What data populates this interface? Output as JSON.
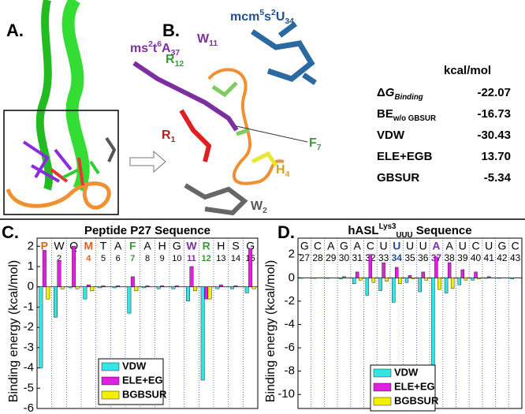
{
  "panel_labels": {
    "a": "A.",
    "b": "B."
  },
  "structure_labels": [
    {
      "color": "#7b2fa0",
      "parts": [
        {
          "t": "ms"
        },
        {
          "t": "2",
          "s": "sup"
        },
        {
          "t": "t"
        },
        {
          "t": "6",
          "s": "sup"
        },
        {
          "t": "A"
        },
        {
          "t": "37",
          "s": "sub"
        }
      ]
    },
    {
      "color": "#1f4f8f",
      "parts": [
        {
          "t": "mcm"
        },
        {
          "t": "5",
          "s": "sup"
        },
        {
          "t": "s"
        },
        {
          "t": "2",
          "s": "sup"
        },
        {
          "t": "U"
        },
        {
          "t": "34",
          "s": "sub"
        }
      ]
    },
    {
      "color": "#3a9a3a",
      "parts": [
        {
          "t": "R"
        },
        {
          "t": "12",
          "s": "sub"
        }
      ]
    },
    {
      "color": "#7b2fa0",
      "parts": [
        {
          "t": "W"
        },
        {
          "t": "11",
          "s": "sub"
        }
      ]
    },
    {
      "color": "#b22222",
      "parts": [
        {
          "t": "R"
        },
        {
          "t": "1",
          "s": "sub"
        }
      ]
    },
    {
      "color": "#3a9a3a",
      "parts": [
        {
          "t": "F"
        },
        {
          "t": "7",
          "s": "sub"
        }
      ]
    },
    {
      "color": "#d4a017",
      "parts": [
        {
          "t": "H"
        },
        {
          "t": "4",
          "s": "sub"
        }
      ]
    },
    {
      "color": "#555555",
      "parts": [
        {
          "t": "W"
        },
        {
          "t": "2",
          "s": "sub"
        }
      ]
    }
  ],
  "energy_table": {
    "unit": "kcal/mol",
    "rows": [
      {
        "label": [
          {
            "t": "Δ"
          },
          {
            "t": "G",
            "i": true
          },
          {
            "t": "Binding",
            "s": "sub",
            "i": true
          }
        ],
        "value": "-22.07"
      },
      {
        "label": [
          {
            "t": "BE"
          },
          {
            "t": "w/o GBSUR",
            "s": "sub"
          }
        ],
        "value": "-16.73"
      },
      {
        "label": [
          {
            "t": "VDW"
          }
        ],
        "value": "-30.43"
      },
      {
        "label": [
          {
            "t": "ELE+EGB"
          }
        ],
        "value": "13.70"
      },
      {
        "label": [
          {
            "t": "GBSUR"
          }
        ],
        "value": "-5.34"
      }
    ]
  },
  "chart_data": [
    {
      "type": "bar",
      "panel_label": "C.",
      "title": [
        {
          "t": "Peptide P27 Sequence"
        }
      ],
      "y_label": "Binding energy (kcal/mol)",
      "categories": [
        "P",
        "W",
        "Q",
        "M",
        "T",
        "A",
        "F",
        "A",
        "H",
        "G",
        "W",
        "R",
        "H",
        "S",
        "G"
      ],
      "category_numbers": [
        1,
        2,
        3,
        4,
        5,
        6,
        7,
        8,
        9,
        10,
        11,
        12,
        13,
        14,
        15
      ],
      "category_colors": [
        "#e06020",
        "#000000",
        "#000000",
        "#e06020",
        "#000000",
        "#000000",
        "#3a9a3a",
        "#000000",
        "#000000",
        "#000000",
        "#7b2fa0",
        "#3a9a3a",
        "#000000",
        "#000000",
        "#000000"
      ],
      "ylim": [
        -6,
        2.4
      ],
      "yticks": [
        -6,
        -5,
        -4,
        -3,
        -2,
        -1,
        0,
        1,
        2
      ],
      "legend": "lower center",
      "series": [
        {
          "name": "VDW",
          "color": "#33e6e6",
          "values": [
            -4.0,
            -1.5,
            -0.05,
            -0.6,
            -0.05,
            -0.05,
            -1.3,
            -0.05,
            -0.1,
            -0.1,
            -0.7,
            -4.6,
            -0.1,
            -0.1,
            -0.3
          ]
        },
        {
          "name": "ELE+EG",
          "color": "#e020e0",
          "values": [
            1.8,
            1.3,
            2.0,
            0.1,
            0.05,
            0.05,
            0.5,
            0.05,
            0.05,
            0.05,
            1.0,
            -0.6,
            0.1,
            0.05,
            1.9
          ]
        },
        {
          "name": "BGBSUR",
          "color": "#f0f000",
          "values": [
            -0.6,
            -0.1,
            -0.1,
            -0.2,
            0,
            0,
            -0.2,
            0,
            0,
            0,
            -0.2,
            -0.6,
            0,
            0,
            -0.1
          ]
        }
      ]
    },
    {
      "type": "bar",
      "panel_label": "D.",
      "title": [
        {
          "t": "hASL"
        },
        {
          "t": "Lys3",
          "s": "sup"
        },
        {
          "t": "UUU",
          "s": "sub"
        },
        {
          "t": " Sequence"
        }
      ],
      "y_label": "Binding energy (kcal/mol)",
      "categories": [
        "G",
        "C",
        "A",
        "G",
        "A",
        "C",
        "U",
        "U",
        "U",
        "U",
        "A",
        "A",
        "U",
        "C",
        "U",
        "G",
        "C"
      ],
      "category_numbers": [
        27,
        28,
        29,
        30,
        31,
        32,
        33,
        34,
        35,
        36,
        37,
        38,
        39,
        40,
        41,
        42,
        43
      ],
      "category_colors": [
        "#000000",
        "#000000",
        "#000000",
        "#000000",
        "#000000",
        "#000000",
        "#000000",
        "#1f4f8f",
        "#000000",
        "#000000",
        "#7b2fa0",
        "#000000",
        "#000000",
        "#000000",
        "#000000",
        "#000000",
        "#000000"
      ],
      "ylim": [
        -11.2,
        3.4
      ],
      "yticks": [
        -10,
        -8,
        -6,
        -4,
        -2,
        0,
        2
      ],
      "legend": "lower left",
      "series": [
        {
          "name": "VDW",
          "color": "#33e6e6",
          "values": [
            -0.05,
            -0.05,
            -0.05,
            -0.1,
            -0.5,
            -1.5,
            -1.1,
            -2.1,
            -0.4,
            -1.2,
            -8.0,
            -1.3,
            -0.6,
            -0.2,
            -0.05,
            -0.05,
            -0.1
          ]
        },
        {
          "name": "ELE+EG",
          "color": "#e020e0",
          "values": [
            0,
            0,
            0,
            0.1,
            0.5,
            2.0,
            1.3,
            0.9,
            0.2,
            0.5,
            1.8,
            1.3,
            0.7,
            0.5,
            0.1,
            0,
            0
          ]
        },
        {
          "name": "BGBSUR",
          "color": "#f0f000",
          "values": [
            0,
            0,
            0,
            0,
            -0.2,
            -0.4,
            -0.3,
            -0.5,
            -0.1,
            -0.2,
            -1.0,
            -0.9,
            -0.2,
            -0.1,
            0,
            0,
            0
          ]
        }
      ]
    }
  ]
}
